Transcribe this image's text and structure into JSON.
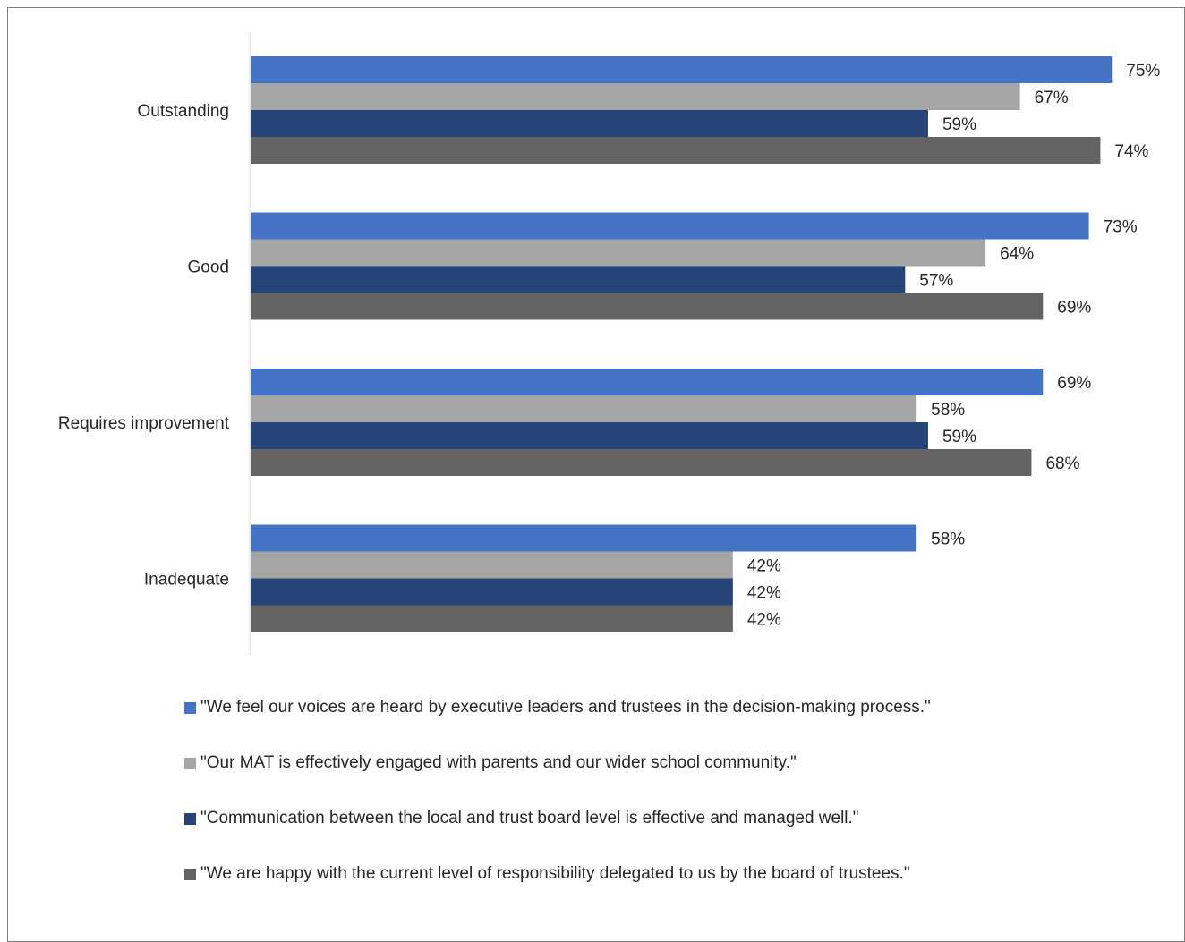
{
  "chart_data": {
    "type": "bar",
    "orientation": "horizontal",
    "categories": [
      "Outstanding",
      "Good",
      "Requires improvement",
      "Inadequate"
    ],
    "series": [
      {
        "name": "\"We feel our voices are heard by executive leaders and trustees in the decision-making process.\"",
        "color": "#4472c4",
        "values": [
          75,
          73,
          69,
          58
        ]
      },
      {
        "name": "\"Our MAT is effectively engaged with parents and our wider school community.\"",
        "color": "#a5a5a5",
        "values": [
          67,
          64,
          58,
          42
        ]
      },
      {
        "name": "\"Communication between the local and trust board level is effective and managed well.\"",
        "color": "#264478",
        "values": [
          59,
          57,
          59,
          42
        ]
      },
      {
        "name": "\"We are happy with the current level of responsibility delegated to us by the board of trustees.\"",
        "color": "#636363",
        "values": [
          74,
          69,
          68,
          42
        ]
      }
    ],
    "value_suffix": "%",
    "xlim": [
      0,
      100
    ],
    "grid": false,
    "legend_position": "bottom",
    "title": "",
    "xlabel": "",
    "ylabel": ""
  }
}
